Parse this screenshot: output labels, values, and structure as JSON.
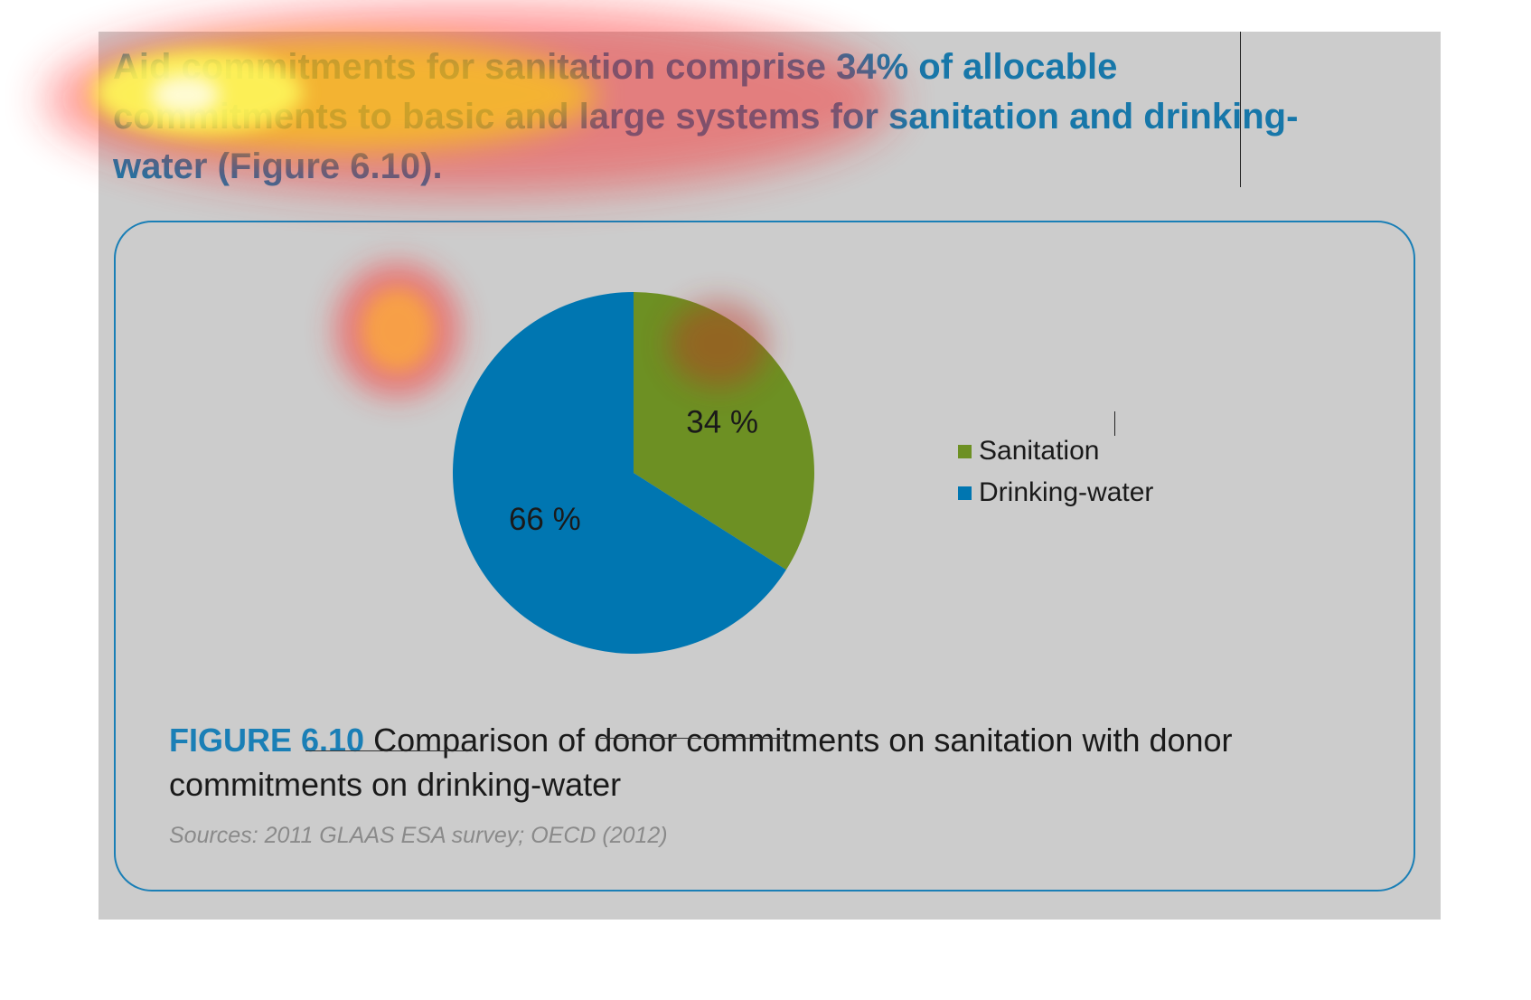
{
  "heading": "Aid commitments for sanitation comprise 34% of allocable commitments to basic and large systems for sanitation and drinking-water (Figure 6.10).",
  "figure": {
    "number": "FIGURE 6.10",
    "caption": " Comparison of donor commitments on sanitation with donor commitments on drinking-water",
    "sources": "Sources: 2011 GLAAS ESA survey; OECD (2012)"
  },
  "chart_data": {
    "type": "pie",
    "categories": [
      "Sanitation",
      "Drinking-water"
    ],
    "values": [
      34,
      66
    ],
    "value_labels": [
      "34 %",
      "66 %"
    ],
    "colors": [
      "#6d9023",
      "#0076b1"
    ],
    "legend_position": "right",
    "start_angle": "12 o'clock",
    "direction": "clockwise"
  },
  "legend": {
    "items": [
      {
        "label": "Sanitation",
        "color": "#6d9023"
      },
      {
        "label": "Drinking-water",
        "color": "#0076b1"
      }
    ]
  }
}
